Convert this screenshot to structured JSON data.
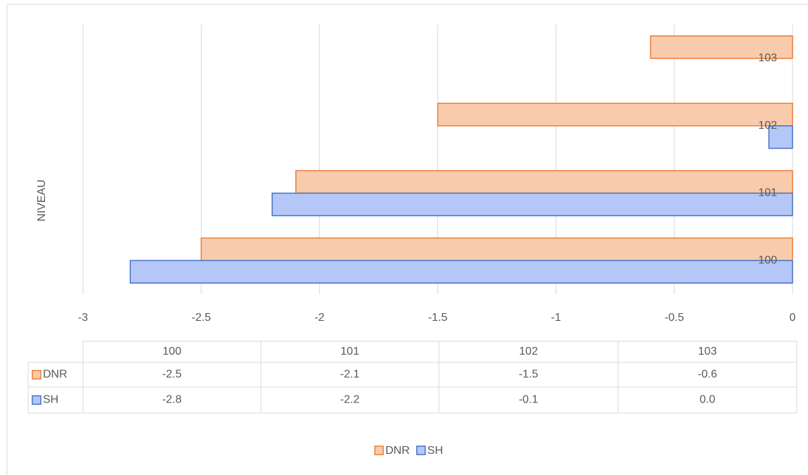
{
  "chart_data": {
    "type": "hbar",
    "y_axis_label": "NIVEAU",
    "categories": [
      "100",
      "101",
      "102",
      "103"
    ],
    "series": [
      {
        "name": "DNR",
        "color": "#f8cbad",
        "edge_color": "#ed7d31",
        "values": [
          -2.5,
          -2.1,
          -1.5,
          -0.6
        ]
      },
      {
        "name": "SH",
        "color": "#b4c7f7",
        "edge_color": "#4472c4",
        "values": [
          -2.8,
          -2.2,
          -0.1,
          0
        ],
        "value_labels": [
          "-2.8",
          "-2.2",
          "-0.1",
          "0.0"
        ]
      }
    ],
    "xlim": [
      -3,
      0
    ],
    "xticks": [
      -3,
      -2.5,
      -2,
      -1.5,
      -1,
      -0.5,
      0
    ],
    "grid": true,
    "data_table": true,
    "legend": "bottom"
  }
}
